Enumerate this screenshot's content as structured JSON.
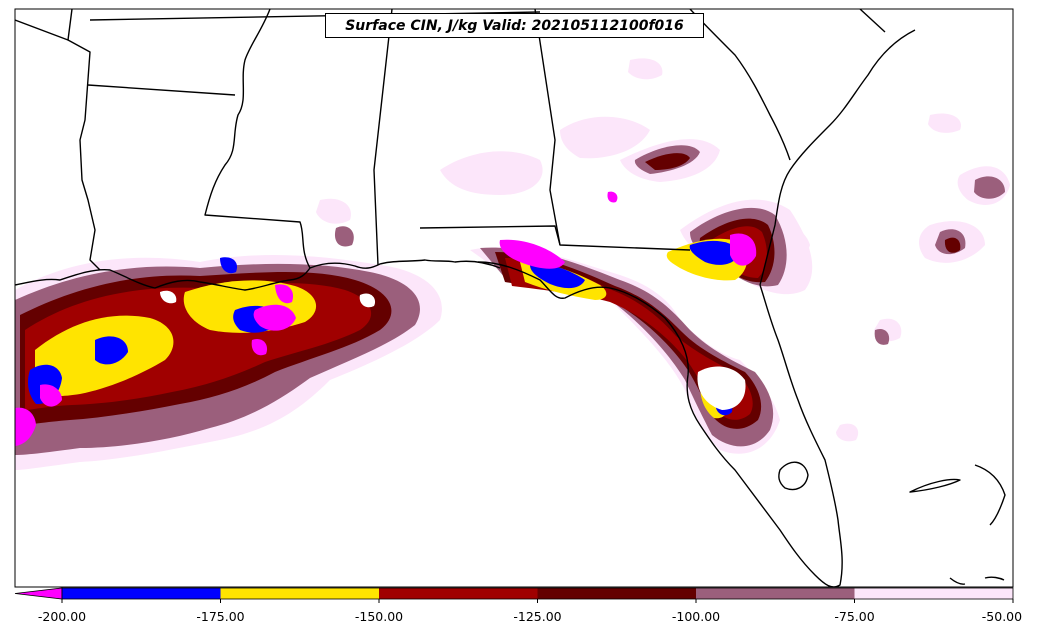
{
  "title": "Surface CIN, J/kg Valid: 202105112100f016",
  "colorbar": {
    "ticks": [
      "-200.00",
      "-175.00",
      "-150.00",
      "-125.00",
      "-100.00",
      "-75.00",
      "-50.00"
    ],
    "extend": "min",
    "bins": [
      {
        "range": [
          -225,
          -200
        ],
        "color": "#ff00ff"
      },
      {
        "range": [
          -200,
          -175
        ],
        "color": "#0000ff"
      },
      {
        "range": [
          -175,
          -150
        ],
        "color": "#ffe400"
      },
      {
        "range": [
          -150,
          -125
        ],
        "color": "#a00000"
      },
      {
        "range": [
          -125,
          -100
        ],
        "color": "#640000"
      },
      {
        "range": [
          -100,
          -75
        ],
        "color": "#9b5f7c"
      },
      {
        "range": [
          -75,
          -50
        ],
        "color": "#fce6fa"
      }
    ]
  },
  "regions": [
    "Gulf of Mexico",
    "Florida",
    "Louisiana",
    "Mississippi",
    "Alabama",
    "Georgia",
    "Texas",
    "Arkansas",
    "Tennessee",
    "South Carolina"
  ]
}
